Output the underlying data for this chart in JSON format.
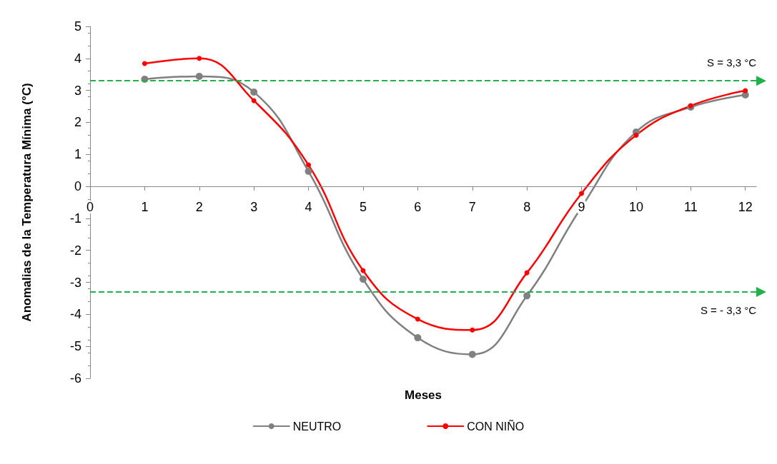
{
  "chart_data": {
    "type": "line",
    "xlabel": "Meses",
    "ylabel": "Anomalias de la Temperatura Mínima (°C)",
    "x": [
      1,
      2,
      3,
      4,
      5,
      6,
      7,
      8,
      9,
      10,
      11,
      12
    ],
    "series": [
      {
        "name": "NEUTRO",
        "color": "#808080",
        "values": [
          3.35,
          3.44,
          2.95,
          0.47,
          -2.9,
          -4.73,
          -5.25,
          -3.42,
          -0.65,
          1.7,
          2.48,
          2.86
        ]
      },
      {
        "name": "CON NIÑO",
        "color": "#ff0000",
        "values": [
          3.84,
          4.0,
          2.68,
          0.67,
          -2.63,
          -4.15,
          -4.49,
          -2.7,
          -0.22,
          1.6,
          2.52,
          2.99
        ]
      }
    ],
    "xlim": [
      0,
      12.2
    ],
    "xticks": [
      0,
      1,
      2,
      3,
      4,
      5,
      6,
      7,
      8,
      9,
      10,
      11,
      12
    ],
    "ylim": [
      -6,
      5
    ],
    "yticks": [
      -6,
      -5,
      -4,
      -3,
      -2,
      -1,
      0,
      1,
      2,
      3,
      4,
      5
    ],
    "ref_lines": [
      {
        "axis": "y",
        "value": 3.3,
        "label": "S = 3,3 °C",
        "color": "#22b04b",
        "line_style": "dashed"
      },
      {
        "axis": "y",
        "value": -3.3,
        "label": "S = - 3,3 °C",
        "color": "#22b04b",
        "line_style": "dashed"
      }
    ],
    "grid": false,
    "legend": "bottom",
    "marker": "circle",
    "line_style": "solid"
  }
}
